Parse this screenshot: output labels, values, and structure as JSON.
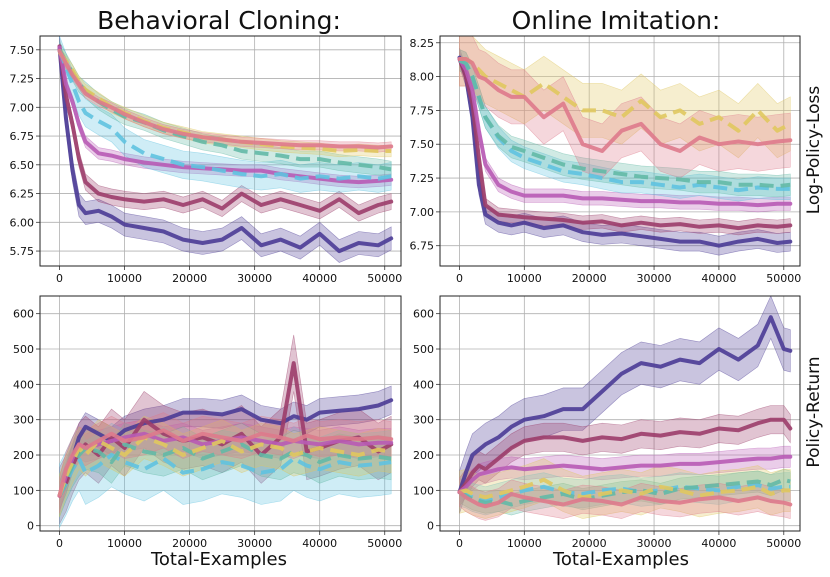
{
  "figure": {
    "column_titles": [
      "Behavioral Cloning:",
      "Online Imitation:"
    ],
    "row_labels": [
      "Log-Policy-Loss",
      "Policy-Return"
    ],
    "xlabel": "Total-Examples"
  },
  "series_colors": {
    "s1": "#4b3c96",
    "s2": "#9c3d6a",
    "s3": "#b85bb5",
    "s4": "#5fc2e0",
    "s5": "#63b9a6",
    "s6": "#e0c85f",
    "s7": "#de7a8c"
  },
  "chart_data": [
    {
      "type": "line",
      "id": "bc-loss",
      "xlim": [
        -3000,
        52500
      ],
      "ylim": [
        5.62,
        7.62
      ],
      "xticks": [
        0,
        10000,
        20000,
        30000,
        40000,
        50000
      ],
      "yticks": [
        5.75,
        6.0,
        6.25,
        6.5,
        6.75,
        7.0,
        7.25,
        7.5
      ],
      "ytick_labels": [
        "5.75",
        "6.00",
        "6.25",
        "6.50",
        "6.75",
        "7.00",
        "7.25",
        "7.50"
      ],
      "grid": true,
      "x": [
        0,
        1000,
        2000,
        3000,
        4000,
        6000,
        8000,
        10000,
        13000,
        16000,
        19000,
        22000,
        25000,
        28000,
        31000,
        34000,
        37000,
        40000,
        43000,
        46000,
        49000,
        51000
      ],
      "series": [
        {
          "key": "s1",
          "dashed": false,
          "band": 0.1,
          "values": [
            7.52,
            6.9,
            6.45,
            6.15,
            6.08,
            6.1,
            6.05,
            5.98,
            5.95,
            5.92,
            5.85,
            5.82,
            5.85,
            5.95,
            5.8,
            5.85,
            5.78,
            5.9,
            5.75,
            5.82,
            5.8,
            5.86
          ]
        },
        {
          "key": "s2",
          "dashed": false,
          "band": 0.07,
          "values": [
            7.53,
            7.1,
            6.85,
            6.55,
            6.35,
            6.25,
            6.22,
            6.2,
            6.18,
            6.2,
            6.15,
            6.2,
            6.12,
            6.25,
            6.15,
            6.2,
            6.15,
            6.1,
            6.2,
            6.08,
            6.15,
            6.18
          ]
        },
        {
          "key": "s3",
          "dashed": false,
          "band": 0.05,
          "values": [
            7.52,
            7.2,
            7.05,
            6.85,
            6.7,
            6.6,
            6.58,
            6.55,
            6.52,
            6.5,
            6.48,
            6.47,
            6.46,
            6.45,
            6.45,
            6.42,
            6.4,
            6.38,
            6.36,
            6.35,
            6.36,
            6.37
          ]
        },
        {
          "key": "s4",
          "dashed": true,
          "band": 0.12,
          "values": [
            7.5,
            7.35,
            7.2,
            7.05,
            6.95,
            6.88,
            6.82,
            6.7,
            6.6,
            6.55,
            6.5,
            6.48,
            6.45,
            6.42,
            6.4,
            6.42,
            6.38,
            6.4,
            6.38,
            6.4,
            6.38,
            6.4
          ]
        },
        {
          "key": "s5",
          "dashed": true,
          "band": 0.07,
          "values": [
            7.5,
            7.4,
            7.3,
            7.2,
            7.15,
            7.05,
            6.98,
            6.92,
            6.87,
            6.8,
            6.75,
            6.7,
            6.67,
            6.62,
            6.6,
            6.58,
            6.55,
            6.55,
            6.52,
            6.5,
            6.48,
            6.46
          ]
        },
        {
          "key": "s6",
          "dashed": true,
          "band": 0.05,
          "values": [
            7.48,
            7.4,
            7.32,
            7.22,
            7.15,
            7.08,
            7.0,
            6.95,
            6.88,
            6.82,
            6.78,
            6.74,
            6.72,
            6.7,
            6.68,
            6.66,
            6.65,
            6.64,
            6.62,
            6.63,
            6.62,
            6.62
          ]
        },
        {
          "key": "s7",
          "dashed": false,
          "band": 0.04,
          "values": [
            7.49,
            7.38,
            7.28,
            7.2,
            7.12,
            7.05,
            7.0,
            6.94,
            6.87,
            6.81,
            6.77,
            6.74,
            6.72,
            6.7,
            6.69,
            6.68,
            6.67,
            6.67,
            6.66,
            6.66,
            6.65,
            6.66
          ]
        }
      ]
    },
    {
      "type": "line",
      "id": "oi-loss",
      "xlim": [
        -3000,
        52500
      ],
      "ylim": [
        6.6,
        8.3
      ],
      "xticks": [
        0,
        10000,
        20000,
        30000,
        40000,
        50000
      ],
      "yticks": [
        6.75,
        7.0,
        7.25,
        7.5,
        7.75,
        8.0,
        8.25
      ],
      "ytick_labels": [
        "6.75",
        "7.00",
        "7.25",
        "7.50",
        "7.75",
        "8.00",
        "8.25"
      ],
      "grid": true,
      "x": [
        0,
        1000,
        2000,
        3000,
        4000,
        6000,
        8000,
        10000,
        13000,
        16000,
        19000,
        22000,
        25000,
        28000,
        31000,
        34000,
        37000,
        40000,
        43000,
        46000,
        49000,
        51000
      ],
      "series": [
        {
          "key": "s1",
          "dashed": false,
          "band": 0.07,
          "values": [
            8.14,
            8.0,
            7.7,
            7.2,
            6.98,
            6.92,
            6.9,
            6.92,
            6.88,
            6.9,
            6.85,
            6.83,
            6.84,
            6.82,
            6.8,
            6.78,
            6.78,
            6.75,
            6.78,
            6.8,
            6.77,
            6.78
          ]
        },
        {
          "key": "s2",
          "dashed": false,
          "band": 0.05,
          "values": [
            8.13,
            8.0,
            7.8,
            7.4,
            7.05,
            6.98,
            6.97,
            6.96,
            6.95,
            6.94,
            6.92,
            6.93,
            6.9,
            6.92,
            6.9,
            6.91,
            6.89,
            6.9,
            6.88,
            6.9,
            6.89,
            6.9
          ]
        },
        {
          "key": "s3",
          "dashed": false,
          "band": 0.05,
          "values": [
            8.13,
            8.05,
            7.9,
            7.6,
            7.35,
            7.2,
            7.15,
            7.12,
            7.12,
            7.12,
            7.1,
            7.1,
            7.09,
            7.08,
            7.08,
            7.07,
            7.07,
            7.06,
            7.06,
            7.05,
            7.06,
            7.06
          ]
        },
        {
          "key": "s4",
          "dashed": true,
          "band": 0.08,
          "values": [
            8.12,
            8.1,
            8.0,
            7.85,
            7.7,
            7.55,
            7.45,
            7.4,
            7.35,
            7.3,
            7.28,
            7.25,
            7.22,
            7.22,
            7.2,
            7.18,
            7.2,
            7.18,
            7.16,
            7.18,
            7.17,
            7.17
          ]
        },
        {
          "key": "s5",
          "dashed": true,
          "band": 0.08,
          "values": [
            8.12,
            8.1,
            8.0,
            7.85,
            7.7,
            7.56,
            7.48,
            7.45,
            7.4,
            7.35,
            7.32,
            7.3,
            7.28,
            7.26,
            7.25,
            7.24,
            7.22,
            7.22,
            7.2,
            7.2,
            7.19,
            7.2
          ]
        },
        {
          "key": "s6",
          "dashed": true,
          "band": 0.2,
          "values": [
            8.13,
            8.13,
            8.1,
            8.05,
            8.0,
            7.95,
            7.9,
            7.85,
            7.95,
            7.85,
            7.75,
            7.75,
            7.7,
            7.82,
            7.7,
            7.75,
            7.65,
            7.7,
            7.6,
            7.75,
            7.6,
            7.65
          ]
        },
        {
          "key": "s7",
          "dashed": false,
          "band": 0.2,
          "values": [
            8.13,
            8.13,
            8.1,
            8.0,
            7.98,
            7.9,
            7.85,
            7.85,
            7.7,
            7.8,
            7.5,
            7.45,
            7.6,
            7.65,
            7.5,
            7.45,
            7.55,
            7.5,
            7.52,
            7.5,
            7.52,
            7.53
          ]
        }
      ]
    },
    {
      "type": "line",
      "id": "bc-return",
      "xlim": [
        -3000,
        52500
      ],
      "ylim": [
        -15,
        650
      ],
      "xticks": [
        0,
        10000,
        20000,
        30000,
        40000,
        50000
      ],
      "yticks": [
        0,
        100,
        200,
        300,
        400,
        500,
        600
      ],
      "ytick_labels": [
        "0",
        "100",
        "200",
        "300",
        "400",
        "500",
        "600"
      ],
      "grid": true,
      "x": [
        0,
        1000,
        2000,
        3000,
        4000,
        6000,
        8000,
        10000,
        13000,
        16000,
        19000,
        22000,
        25000,
        28000,
        31000,
        34000,
        36000,
        38000,
        40000,
        43000,
        46000,
        49000,
        51000
      ],
      "series": [
        {
          "key": "s1",
          "dashed": false,
          "band": 40,
          "values": [
            85,
            130,
            190,
            250,
            280,
            260,
            240,
            270,
            290,
            300,
            320,
            320,
            315,
            330,
            300,
            290,
            310,
            300,
            320,
            325,
            330,
            340,
            355
          ]
        },
        {
          "key": "s2",
          "dashed": false,
          "band": 80,
          "values": [
            85,
            120,
            170,
            210,
            230,
            200,
            250,
            220,
            300,
            260,
            240,
            250,
            230,
            260,
            200,
            250,
            460,
            210,
            220,
            240,
            250,
            210,
            230
          ]
        },
        {
          "key": "s3",
          "dashed": false,
          "band": 40,
          "values": [
            85,
            140,
            190,
            230,
            220,
            230,
            240,
            250,
            260,
            240,
            250,
            230,
            240,
            250,
            240,
            230,
            240,
            235,
            230,
            240,
            230,
            235,
            235
          ]
        },
        {
          "key": "s4",
          "dashed": true,
          "band": 90,
          "values": [
            85,
            120,
            160,
            190,
            150,
            170,
            200,
            180,
            160,
            190,
            150,
            160,
            180,
            170,
            150,
            160,
            190,
            170,
            160,
            180,
            170,
            175,
            180
          ]
        },
        {
          "key": "s5",
          "dashed": true,
          "band": 60,
          "values": [
            85,
            130,
            170,
            200,
            220,
            210,
            180,
            230,
            210,
            200,
            220,
            190,
            210,
            230,
            200,
            190,
            210,
            200,
            180,
            200,
            190,
            195,
            190
          ]
        },
        {
          "key": "s6",
          "dashed": true,
          "band": 60,
          "values": [
            85,
            140,
            180,
            220,
            200,
            240,
            220,
            200,
            250,
            230,
            200,
            220,
            240,
            210,
            230,
            220,
            200,
            210,
            220,
            210,
            200,
            215,
            210
          ]
        },
        {
          "key": "s7",
          "dashed": false,
          "band": 50,
          "values": [
            85,
            160,
            200,
            230,
            220,
            240,
            260,
            240,
            250,
            270,
            240,
            260,
            250,
            240,
            260,
            250,
            240,
            255,
            245,
            250,
            245,
            250,
            245
          ]
        }
      ]
    },
    {
      "type": "line",
      "id": "oi-return",
      "xlim": [
        -3000,
        52500
      ],
      "ylim": [
        -15,
        650
      ],
      "xticks": [
        0,
        10000,
        20000,
        30000,
        40000,
        50000
      ],
      "yticks": [
        0,
        100,
        200,
        300,
        400,
        500,
        600
      ],
      "ytick_labels": [
        "0",
        "100",
        "200",
        "300",
        "400",
        "500",
        "600"
      ],
      "grid": true,
      "x": [
        0,
        1000,
        2000,
        3000,
        4000,
        6000,
        8000,
        10000,
        13000,
        16000,
        19000,
        22000,
        25000,
        28000,
        31000,
        34000,
        37000,
        40000,
        43000,
        46000,
        48000,
        50000,
        51000
      ],
      "series": [
        {
          "key": "s1",
          "dashed": false,
          "band": 60,
          "values": [
            95,
            150,
            200,
            215,
            230,
            250,
            280,
            300,
            310,
            330,
            330,
            380,
            430,
            460,
            450,
            470,
            460,
            500,
            470,
            510,
            590,
            500,
            495
          ]
        },
        {
          "key": "s2",
          "dashed": false,
          "band": 40,
          "values": [
            95,
            120,
            150,
            170,
            160,
            190,
            220,
            240,
            250,
            250,
            240,
            250,
            245,
            260,
            255,
            265,
            260,
            275,
            270,
            290,
            300,
            300,
            275
          ]
        },
        {
          "key": "s3",
          "dashed": false,
          "band": 30,
          "values": [
            95,
            110,
            130,
            145,
            150,
            160,
            165,
            160,
            165,
            170,
            165,
            160,
            165,
            170,
            170,
            175,
            175,
            180,
            185,
            190,
            190,
            195,
            195
          ]
        },
        {
          "key": "s4",
          "dashed": true,
          "band": 40,
          "values": [
            95,
            90,
            80,
            75,
            70,
            80,
            90,
            100,
            110,
            95,
            90,
            100,
            105,
            95,
            100,
            110,
            105,
            100,
            110,
            115,
            105,
            110,
            110
          ]
        },
        {
          "key": "s5",
          "dashed": true,
          "band": 30,
          "values": [
            95,
            85,
            75,
            70,
            65,
            70,
            60,
            70,
            80,
            90,
            75,
            85,
            95,
            100,
            90,
            105,
            110,
            115,
            120,
            125,
            115,
            130,
            125
          ]
        },
        {
          "key": "s6",
          "dashed": true,
          "band": 60,
          "values": [
            95,
            100,
            90,
            85,
            80,
            90,
            100,
            110,
            130,
            100,
            80,
            90,
            100,
            90,
            110,
            100,
            85,
            95,
            100,
            110,
            90,
            100,
            100
          ]
        },
        {
          "key": "s7",
          "dashed": false,
          "band": 40,
          "values": [
            95,
            80,
            70,
            60,
            55,
            65,
            90,
            80,
            70,
            60,
            75,
            70,
            60,
            80,
            70,
            65,
            75,
            80,
            70,
            80,
            70,
            65,
            60
          ]
        }
      ]
    }
  ]
}
